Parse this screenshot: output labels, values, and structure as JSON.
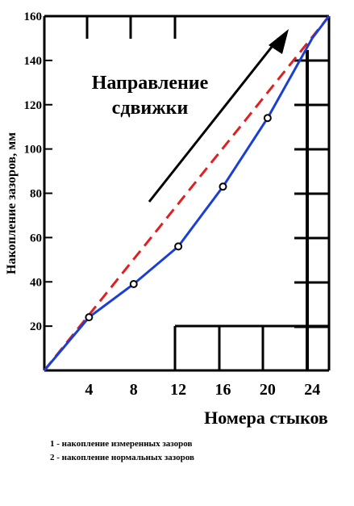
{
  "chart_data": {
    "type": "line",
    "ylabel": "Накопление зазоров, мм",
    "xlabel": "Номера  стыков",
    "xticks": [
      "4",
      "8",
      "12",
      "16",
      "20",
      "24"
    ],
    "yticks": [
      "20",
      "40",
      "60",
      "80",
      "100",
      "120",
      "140",
      "160"
    ],
    "xlim": [
      0,
      25.5
    ],
    "ylim": [
      0,
      160
    ],
    "annotation": [
      "Направление",
      "сдвижки"
    ],
    "legend": [
      "1 - накопление измеренных зазоров",
      "2 - накопление нормальных зазоров"
    ],
    "series": [
      {
        "color": "#1a3fd6",
        "style": "solid",
        "points": [
          [
            0,
            0
          ],
          [
            4,
            24
          ],
          [
            8,
            39
          ],
          [
            12,
            56
          ],
          [
            16,
            83
          ],
          [
            20,
            114
          ],
          [
            24,
            150
          ],
          [
            25.5,
            160
          ]
        ]
      },
      {
        "color": "#e02020",
        "style": "dashed",
        "points": [
          [
            0,
            0
          ],
          [
            25.5,
            160
          ]
        ]
      }
    ],
    "markers": [
      [
        4,
        24
      ],
      [
        8,
        39
      ],
      [
        12,
        56
      ],
      [
        16,
        83
      ],
      [
        20,
        114
      ]
    ],
    "colors": {
      "measured": "#1a3fd6",
      "normal": "#e02020",
      "axis": "#000000"
    }
  }
}
